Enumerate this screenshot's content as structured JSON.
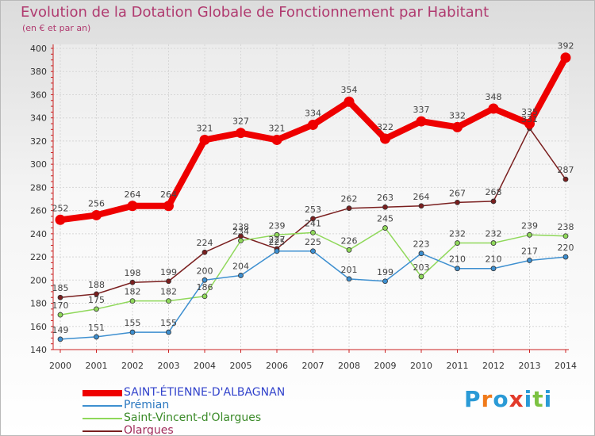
{
  "header": {
    "title": "Evolution de la Dotation Globale de Fonctionnement par Habitant",
    "subtitle": "(en € et par an)"
  },
  "brand": {
    "name": "Proxiti",
    "letters": [
      "P",
      "r",
      "o",
      "x",
      "i",
      "t",
      "i"
    ],
    "colors": [
      "#2a9ad6",
      "#f07a1a",
      "#2a9ad6",
      "#e23a2a",
      "#2a9ad6",
      "#7cc242",
      "#2a9ad6"
    ]
  },
  "chart_data": {
    "type": "line",
    "title": "Evolution de la Dotation Globale de Fonctionnement par Habitant",
    "subtitle": "(en € et par an)",
    "xlabel": "",
    "ylabel": "",
    "ylim": [
      140,
      400
    ],
    "yticks": [
      "140",
      "160",
      "180",
      "200",
      "220",
      "240",
      "260",
      "280",
      "300",
      "320",
      "340",
      "360",
      "380",
      "400"
    ],
    "categories": [
      "2000",
      "2001",
      "2002",
      "2003",
      "2004",
      "2005",
      "2006",
      "2007",
      "2008",
      "2009",
      "2010",
      "2011",
      "2012",
      "2013",
      "2014"
    ],
    "grid": true,
    "series": [
      {
        "name": "Olargues",
        "color": "#7a1f1f",
        "values": [
          185,
          188,
          198,
          199,
          224,
          238,
          227,
          253,
          262,
          263,
          264,
          267,
          268,
          331,
          287
        ],
        "labels": [
          "185",
          "188",
          "198",
          "199",
          "224",
          "238",
          "227",
          "253",
          "262",
          "263",
          "264",
          "267",
          "268",
          "331",
          "287"
        ]
      },
      {
        "name": "Saint-Vincent-d'Olargues",
        "color": "#8fd85a",
        "values": [
          170,
          175,
          182,
          182,
          186,
          234,
          239,
          241,
          226,
          245,
          203,
          232,
          232,
          239,
          238
        ],
        "labels": [
          "170",
          "175",
          "182",
          "182",
          "186",
          "234",
          "239",
          "241",
          "226",
          "245",
          "203",
          "232",
          "232",
          "239",
          "238"
        ]
      },
      {
        "name": "Prémian",
        "color": "#3d8fd0",
        "values": [
          149,
          151,
          155,
          155,
          200,
          204,
          225,
          225,
          201,
          199,
          223,
          210,
          210,
          217,
          220
        ],
        "labels": [
          "149",
          "151",
          "155",
          "155",
          "200",
          "204",
          "225",
          "225",
          "201",
          "199",
          "223",
          "210",
          "210",
          "217",
          "220"
        ]
      },
      {
        "name": "SAINT-ÉTIENNE-D'ALBAGNAN",
        "color": "#ee0000",
        "values": [
          252,
          256,
          264,
          264,
          321,
          327,
          321,
          334,
          354,
          322,
          337,
          332,
          348,
          335,
          392
        ],
        "labels": [
          "252",
          "256",
          "264",
          "264",
          "321",
          "327",
          "321",
          "334",
          "354",
          "322",
          "337",
          "332",
          "348",
          "335",
          "392"
        ]
      }
    ],
    "legend": [
      {
        "name": "SAINT-ÉTIENNE-D'ALBAGNAN",
        "color": "#ee0000",
        "text_color": "#3344cc"
      },
      {
        "name": "Prémian",
        "color": "#3d8fd0",
        "text_color": "#2b78c0"
      },
      {
        "name": "Saint-Vincent-d'Olargues",
        "color": "#8fd85a",
        "text_color": "#3a8a28"
      },
      {
        "name": "Olargues",
        "color": "#7a1f1f",
        "text_color": "#a02a5a"
      }
    ]
  }
}
